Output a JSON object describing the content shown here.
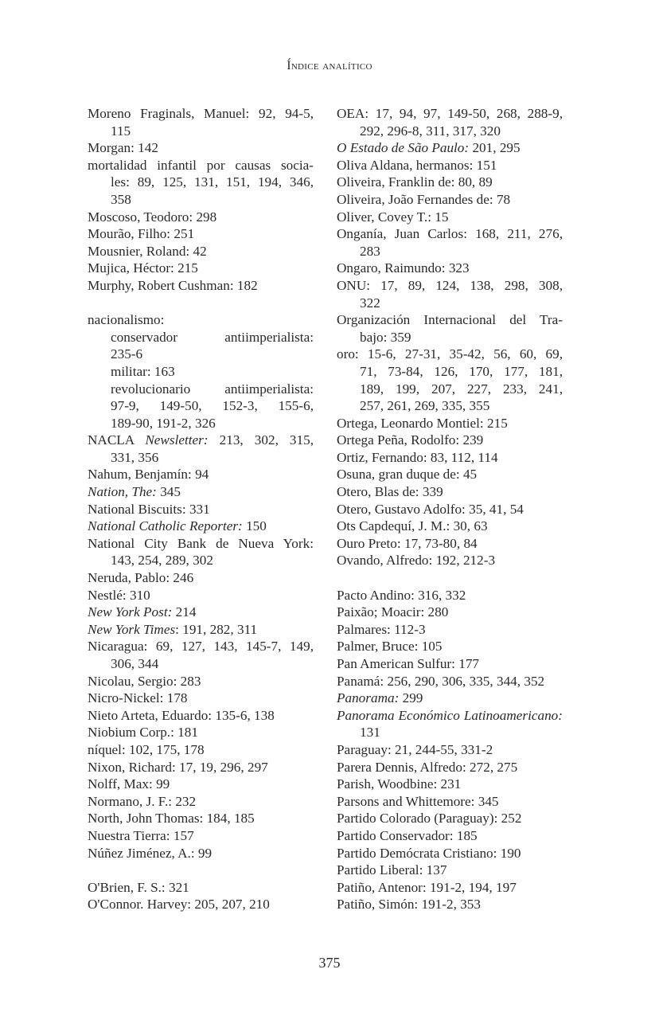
{
  "header": {
    "title": "Índice analítico"
  },
  "page_number": "375",
  "columns": {
    "left": [
      {
        "lines": [
          "Moreno Fraginals, Manuel: 92, 94-5,",
          "115"
        ]
      },
      {
        "lines": [
          "Morgan: 142"
        ]
      },
      {
        "lines": [
          "mortalidad infantil por causas socia-",
          "les: 89, 125, 131, 151, 194, 346,",
          "358"
        ]
      },
      {
        "lines": [
          "Moscoso, Teodoro: 298"
        ]
      },
      {
        "lines": [
          "Mourão, Filho: 251"
        ]
      },
      {
        "lines": [
          "Mousnier, Roland: 42"
        ]
      },
      {
        "lines": [
          "Mujica, Héctor: 215"
        ]
      },
      {
        "lines": [
          "Murphy, Robert Cushman: 182"
        ]
      },
      {
        "blank": true
      },
      {
        "lines": [
          "nacionalismo:"
        ]
      },
      {
        "level": 1,
        "lines": [
          "conservador antiimperialista:",
          "235-6"
        ]
      },
      {
        "level": 1,
        "lines": [
          "militar: 163"
        ]
      },
      {
        "level": 1,
        "lines": [
          "revolucionario antiimperialista:",
          "97-9, 149-50, 152-3, 155-6,",
          "189-90, 191-2, 326"
        ]
      },
      {
        "prefix": "NACLA ",
        "italic": "Newsletter:",
        "lines": [
          " 213, 302, 315,",
          "331, 356"
        ]
      },
      {
        "lines": [
          "Nahum, Benjamín: 94"
        ]
      },
      {
        "italic": "Nation, The:",
        "lines": [
          " 345"
        ]
      },
      {
        "lines": [
          "National Biscuits: 331"
        ]
      },
      {
        "italic": "National Catholic Reporter:",
        "lines": [
          " 150"
        ]
      },
      {
        "lines": [
          "National City Bank de Nueva York:",
          "143, 254, 289, 302"
        ]
      },
      {
        "lines": [
          "Neruda, Pablo: 246"
        ]
      },
      {
        "lines": [
          "Nestlé: 310"
        ]
      },
      {
        "italic": "New York Post:",
        "lines": [
          " 214"
        ]
      },
      {
        "italic": "New  York Times",
        "lines": [
          ": 191, 282, 311"
        ]
      },
      {
        "lines": [
          "Nicaragua: 69, 127, 143, 145-7, 149,",
          "306, 344"
        ]
      },
      {
        "lines": [
          "Nicolau, Sergio: 283"
        ]
      },
      {
        "lines": [
          "Nicro-Nickel: 178"
        ]
      },
      {
        "lines": [
          "Nieto Arteta, Eduardo: 135-6, 138"
        ]
      },
      {
        "lines": [
          "Niobium Corp.: 181"
        ]
      },
      {
        "lines": [
          "níquel: 102, 175, 178"
        ]
      },
      {
        "lines": [
          "Nixon, Richard: 17, 19, 296, 297"
        ]
      },
      {
        "lines": [
          "Nolff, Max: 99"
        ]
      },
      {
        "lines": [
          "Normano, J. F.: 232"
        ]
      },
      {
        "lines": [
          "North, John Thomas: 184, 185"
        ]
      },
      {
        "lines": [
          "Nuestra Tierra: 157"
        ]
      },
      {
        "lines": [
          "Núñez Jiménez, A.: 99"
        ]
      },
      {
        "blank": true
      },
      {
        "lines": [
          "O'Brien, F. S.: 321"
        ]
      },
      {
        "lines": [
          "O'Connor. Harvey: 205, 207, 210"
        ]
      }
    ],
    "right": [
      {
        "lines": [
          "OEA: 17, 94, 97, 149-50, 268, 288-9,",
          "292, 296-8, 311, 317, 320"
        ]
      },
      {
        "italic": "O Estado de São Paulo:",
        "lines": [
          " 201, 295"
        ]
      },
      {
        "lines": [
          "Oliva Aldana, hermanos: 151"
        ]
      },
      {
        "lines": [
          "Oliveira, Franklin de: 80, 89"
        ]
      },
      {
        "lines": [
          "Oliveira, João Fernandes de: 78"
        ]
      },
      {
        "lines": [
          "Oliver, Covey T.: 15"
        ]
      },
      {
        "lines": [
          "Onganía, Juan Carlos: 168, 211, 276,",
          "283"
        ]
      },
      {
        "lines": [
          "Ongaro, Raimundo: 323"
        ]
      },
      {
        "lines": [
          "ONU: 17, 89, 124, 138, 298, 308,",
          "322"
        ]
      },
      {
        "lines": [
          "Organización Internacional del Tra-",
          "bajo: 359"
        ]
      },
      {
        "lines": [
          "oro: 15-6, 27-31, 35-42, 56, 60, 69,",
          "71, 73-84, 126, 170, 177, 181,",
          "189, 199, 207, 227, 233, 241,",
          "257, 261, 269, 335, 355"
        ]
      },
      {
        "lines": [
          "Ortega, Leonardo Montiel: 215"
        ]
      },
      {
        "lines": [
          "Ortega Peña, Rodolfo: 239"
        ]
      },
      {
        "lines": [
          "Ortiz, Fernando: 83, 112, 114"
        ]
      },
      {
        "lines": [
          "Osuna, gran duque de: 45"
        ]
      },
      {
        "lines": [
          "Otero, Blas de: 339"
        ]
      },
      {
        "lines": [
          "Otero, Gustavo Adolfo: 35, 41, 54"
        ]
      },
      {
        "lines": [
          "Ots Capdequí, J. M.: 30, 63"
        ]
      },
      {
        "lines": [
          "Ouro Preto: 17, 73-80, 84"
        ]
      },
      {
        "lines": [
          "Ovando, Alfredo: 192, 212-3"
        ]
      },
      {
        "blank": true
      },
      {
        "lines": [
          "Pacto Andino: 316, 332"
        ]
      },
      {
        "lines": [
          "Paixão; Moacir: 280"
        ]
      },
      {
        "lines": [
          "Palmares: 112-3"
        ]
      },
      {
        "lines": [
          "Palmer, Bruce: 105"
        ]
      },
      {
        "lines": [
          "Pan American Sulfur: 177"
        ]
      },
      {
        "lines": [
          "Panamá: 256, 290, 306, 335, 344, 352"
        ]
      },
      {
        "italic": "Panorama:",
        "lines": [
          " 299"
        ]
      },
      {
        "italic": "Panorama Económico Latinoamericano:",
        "lines": [
          "",
          "131"
        ]
      },
      {
        "lines": [
          "Paraguay: 21, 244-55, 331-2"
        ]
      },
      {
        "lines": [
          "Parera Dennis, Alfredo: 272, 275"
        ]
      },
      {
        "lines": [
          "Parish, Woodbine: 231"
        ]
      },
      {
        "lines": [
          "Parsons and Whittemore: 345"
        ]
      },
      {
        "lines": [
          "Partido Colorado (Paraguay): 252"
        ]
      },
      {
        "lines": [
          "Partido Conservador: 185"
        ]
      },
      {
        "lines": [
          "Partido Demócrata Cristiano: 190"
        ]
      },
      {
        "lines": [
          "Partido Liberal: 137"
        ]
      },
      {
        "lines": [
          "Patiño, Antenor: 191-2, 194, 197"
        ]
      },
      {
        "lines": [
          "Patiño, Simón: 191-2, 353"
        ]
      }
    ]
  }
}
